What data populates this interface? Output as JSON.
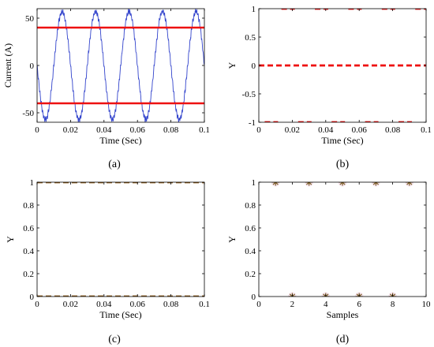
{
  "chart_data": [
    {
      "panel": "a",
      "type": "line",
      "caption": "(a)",
      "xlabel": "Time (Sec)",
      "ylabel": "Current (A)",
      "xlim": [
        0,
        0.1
      ],
      "ylim": [
        -60,
        60
      ],
      "xticks": [
        0,
        0.02,
        0.04,
        0.06,
        0.08,
        0.1
      ],
      "xtick_labels": [
        "0",
        "0.02",
        "0.04",
        "0.06",
        "0.08",
        "0.1"
      ],
      "yticks": [
        -50,
        0,
        50
      ],
      "ytick_labels": [
        "-50",
        "0",
        "50"
      ],
      "series": [
        {
          "kind": "sine",
          "amplitude": 57,
          "frequency_hz": 50,
          "phase": "negative-sine",
          "color": "#3344cc"
        },
        {
          "kind": "hline",
          "y": 40,
          "color": "#ee1111"
        },
        {
          "kind": "hline",
          "y": -40,
          "color": "#ee1111"
        }
      ]
    },
    {
      "panel": "b",
      "type": "line",
      "caption": "(b)",
      "xlabel": "Time (Sec)",
      "ylabel": "Y",
      "xlim": [
        0,
        0.1
      ],
      "ylim": [
        -1,
        1
      ],
      "xticks": [
        0,
        0.02,
        0.04,
        0.06,
        0.08,
        0.1
      ],
      "xtick_labels": [
        "0",
        "0.02",
        "0.04",
        "0.06",
        "0.08",
        "0.1"
      ],
      "yticks": [
        -1,
        -0.5,
        0,
        0.5,
        1
      ],
      "ytick_labels": [
        "-1",
        "-0.5",
        "0",
        "0.5",
        "1"
      ],
      "series": [
        {
          "kind": "dashed-level",
          "y": 1,
          "color": "#ee1111",
          "segments": [
            [
              0.0135,
              0.0215
            ],
            [
              0.0335,
              0.0415
            ],
            [
              0.0535,
              0.0615
            ],
            [
              0.0735,
              0.0815
            ],
            [
              0.0935,
              0.1
            ]
          ]
        },
        {
          "kind": "dashed-level",
          "y": 0,
          "color": "#ee1111",
          "segments": [
            [
              0,
              0.1
            ]
          ]
        },
        {
          "kind": "dashed-level",
          "y": -1,
          "color": "#ee1111",
          "segments": [
            [
              0.0035,
              0.0115
            ],
            [
              0.0235,
              0.0315
            ],
            [
              0.0435,
              0.0515
            ],
            [
              0.0635,
              0.0715
            ],
            [
              0.0835,
              0.0915
            ]
          ]
        }
      ]
    },
    {
      "panel": "c",
      "type": "line",
      "caption": "(c)",
      "xlabel": "Time (Sec)",
      "ylabel": "Y",
      "xlim": [
        0,
        0.1
      ],
      "ylim": [
        0,
        1
      ],
      "xticks": [
        0,
        0.02,
        0.04,
        0.06,
        0.08,
        0.1
      ],
      "xtick_labels": [
        "0",
        "0.02",
        "0.04",
        "0.06",
        "0.08",
        "0.1"
      ],
      "yticks": [
        0,
        0.2,
        0.4,
        0.6,
        0.8,
        1
      ],
      "ytick_labels": [
        "0",
        "0.2",
        "0.4",
        "0.6",
        "0.8",
        "1"
      ],
      "series": [
        {
          "kind": "dashed-level",
          "y": 1,
          "color": "#8a5a1a",
          "segments": [
            [
              0,
              0.1
            ]
          ]
        },
        {
          "kind": "dashed-level",
          "y": 0,
          "color": "#8a5a1a",
          "segments": [
            [
              0,
              0.1
            ]
          ]
        }
      ]
    },
    {
      "panel": "d",
      "type": "scatter",
      "caption": "(d)",
      "xlabel": "Samples",
      "ylabel": "Y",
      "xlim": [
        0,
        10
      ],
      "ylim": [
        0,
        1
      ],
      "xticks": [
        0,
        2,
        4,
        6,
        8,
        10
      ],
      "xtick_labels": [
        "0",
        "2",
        "4",
        "6",
        "8",
        "10"
      ],
      "yticks": [
        0,
        0.2,
        0.4,
        0.6,
        0.8,
        1
      ],
      "ytick_labels": [
        "0",
        "0.2",
        "0.4",
        "0.6",
        "0.8",
        "1"
      ],
      "series": [
        {
          "kind": "points",
          "marker": "star",
          "color": "#7a5a20",
          "x": [
            1,
            2,
            3,
            4,
            5,
            6,
            7,
            8,
            9
          ],
          "y": [
            1,
            0,
            1,
            0,
            1,
            0,
            1,
            0,
            1
          ]
        }
      ]
    }
  ]
}
